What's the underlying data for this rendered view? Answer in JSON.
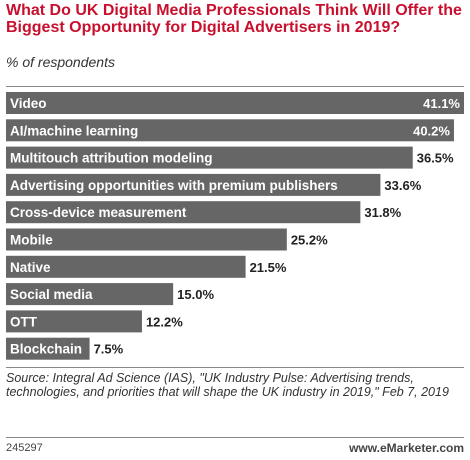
{
  "header": {
    "title": "What Do UK Digital Media Professionals Think Will Offer the Biggest Opportunity for Digital Advertisers in 2019?",
    "subtitle": "% of respondents"
  },
  "footer": {
    "source": "Source: Integral Ad Science (IAS), \"UK Industry Pulse: Advertising trends, technologies, and priorities that will shape the UK industry in 2019,\" Feb 7, 2019",
    "chart_id": "245297",
    "brand": "www.eMarketer.com"
  },
  "colors": {
    "title": "#c8102e",
    "bar": "#666666",
    "bar_label": "#ffffff",
    "value_label": "#222222"
  },
  "chart_data": {
    "type": "bar",
    "orientation": "horizontal",
    "title": "What Do UK Digital Media Professionals Think Will Offer the Biggest Opportunity for Digital Advertisers in 2019?",
    "subtitle": "% of respondents",
    "categories": [
      "Video",
      "AI/machine learning",
      "Multitouch attribution modeling",
      "Advertising opportunities with premium publishers",
      "Cross-device measurement",
      "Mobile",
      "Native",
      "Social media",
      "OTT",
      "Blockchain"
    ],
    "values": [
      41.1,
      40.2,
      36.5,
      33.6,
      31.8,
      25.2,
      21.5,
      15.0,
      12.2,
      7.5
    ],
    "value_labels": [
      "41.1%",
      "40.2%",
      "36.5%",
      "33.6%",
      "31.8%",
      "25.2%",
      "21.5%",
      "15.0%",
      "12.2%",
      "7.5%"
    ],
    "xlim": [
      0,
      41.1
    ],
    "grid": false,
    "legend": "none"
  }
}
